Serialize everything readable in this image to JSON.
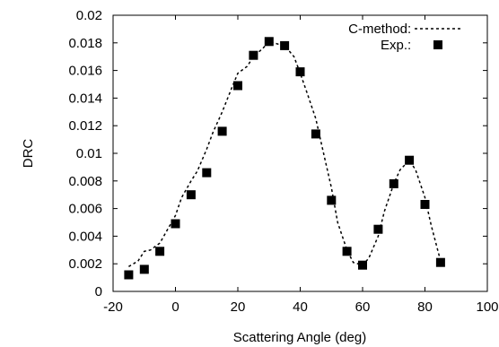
{
  "chart_data": {
    "type": "scatter",
    "title": "",
    "xlabel": "Scattering Angle (deg)",
    "ylabel": "DRC",
    "xlim": [
      -20,
      100
    ],
    "ylim": [
      0,
      0.02
    ],
    "xticks": [
      "-20",
      "0",
      "20",
      "40",
      "60",
      "80",
      "100"
    ],
    "yticks": [
      "0",
      "0.002",
      "0.004",
      "0.006",
      "0.008",
      "0.01",
      "0.012",
      "0.014",
      "0.016",
      "0.018",
      "0.02"
    ],
    "grid": false,
    "legend_position": "top-right",
    "series": [
      {
        "name": "C-method",
        "style": "dashed-line",
        "color": "#000000",
        "x": [
          -15,
          -12,
          -10,
          -8,
          -5,
          -3,
          0,
          2,
          5,
          7,
          10,
          12,
          15,
          18,
          20,
          23,
          25,
          28,
          30,
          33,
          35,
          38,
          40,
          42,
          45,
          47,
          50,
          52,
          55,
          57,
          60,
          62,
          65,
          67,
          70,
          72,
          75,
          77,
          80,
          82,
          85
        ],
        "y": [
          0.0018,
          0.0022,
          0.0029,
          0.003,
          0.0035,
          0.0043,
          0.0055,
          0.0068,
          0.008,
          0.0087,
          0.0103,
          0.0115,
          0.013,
          0.0147,
          0.0158,
          0.0163,
          0.017,
          0.0176,
          0.0181,
          0.0179,
          0.0178,
          0.017,
          0.0158,
          0.0145,
          0.0125,
          0.0105,
          0.0075,
          0.005,
          0.003,
          0.0021,
          0.0019,
          0.0024,
          0.004,
          0.0058,
          0.0078,
          0.0088,
          0.0095,
          0.0088,
          0.0068,
          0.0048,
          0.0022
        ]
      },
      {
        "name": "Exp.",
        "style": "square-marker",
        "color": "#000000",
        "x": [
          -15,
          -10,
          -5,
          0,
          5,
          10,
          15,
          20,
          25,
          30,
          35,
          40,
          45,
          50,
          55,
          60,
          65,
          70,
          75,
          80,
          85
        ],
        "y": [
          0.0012,
          0.0016,
          0.0029,
          0.0049,
          0.007,
          0.0086,
          0.0116,
          0.0149,
          0.0171,
          0.0181,
          0.0178,
          0.0159,
          0.0114,
          0.0066,
          0.0029,
          0.0019,
          0.0045,
          0.0078,
          0.0095,
          0.0063,
          0.0021
        ]
      }
    ]
  }
}
